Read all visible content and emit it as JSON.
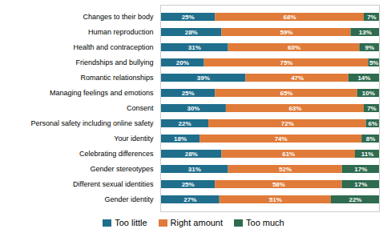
{
  "chart_data": {
    "type": "bar",
    "orientation": "horizontal",
    "stacked": true,
    "data_labels": true,
    "tick_labels": "y",
    "grid": false,
    "legend": "bottom",
    "xlim": [
      0,
      100
    ],
    "categories": [
      "Changes to their body",
      "Human reproduction",
      "Health and contraception",
      "Friendships and bullying",
      "Romantic relationships",
      "Managing feelings and emotions",
      "Consent",
      "Personal safety including online safety",
      "Your identity",
      "Celebrating differences",
      "Gender stereotypes",
      "Different sexual identities",
      "Gender identity"
    ],
    "series": [
      {
        "name": "Too little",
        "color": "#1f6e8c",
        "values": [
          25,
          28,
          31,
          20,
          39,
          25,
          30,
          22,
          18,
          28,
          31,
          25,
          27
        ],
        "value_labels": [
          "25%",
          "28%",
          "31%",
          "20%",
          "39%",
          "25%",
          "30%",
          "22%",
          "18%",
          "28%",
          "31%",
          "25%",
          "27%"
        ]
      },
      {
        "name": "Right amount",
        "color": "#e07b39",
        "values": [
          68,
          59,
          60,
          75,
          47,
          65,
          63,
          72,
          74,
          61,
          52,
          58,
          51
        ],
        "value_labels": [
          "68%",
          "59%",
          "60%",
          "75%",
          "47%",
          "65%",
          "63%",
          "72%",
          "74%",
          "61%",
          "52%",
          "58%",
          "51%"
        ]
      },
      {
        "name": "Too much",
        "color": "#2e6b4f",
        "values": [
          7,
          13,
          9,
          5,
          14,
          10,
          7,
          6,
          8,
          11,
          17,
          17,
          22
        ],
        "value_labels": [
          "7%",
          "13%",
          "9%",
          "5%",
          "14%",
          "10%",
          "7%",
          "6%",
          "8%",
          "11%",
          "17%",
          "17%",
          "22%"
        ]
      }
    ]
  }
}
